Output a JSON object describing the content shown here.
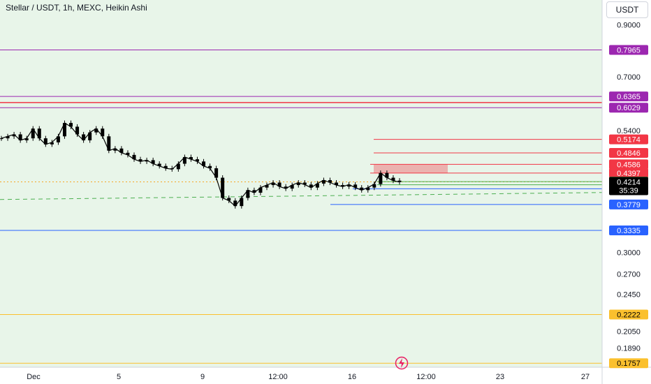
{
  "header": {
    "title": "Stellar / USDT, 1h, MEXC, Heikin Ashi",
    "currency_label": "USDT"
  },
  "colors": {
    "plot_bg": "#e8f5e9",
    "purple": "#9c27b0",
    "red": "#f23645",
    "green": "#4caf50",
    "blue": "#2962ff",
    "yellow": "#fbc02d",
    "candle": "#000000"
  },
  "chart_data": {
    "type": "line",
    "style": "heikin-ashi candles",
    "symbol": "Stellar / USDT",
    "interval": "1h",
    "exchange": "MEXC",
    "title": "",
    "xlabel": "",
    "ylabel": "",
    "y_scale": "log",
    "ylim": [
      0.17,
      1.0
    ],
    "grid": false,
    "x_ticks": [
      "Dec",
      "5",
      "9",
      "12:00",
      "16",
      "12:00",
      "23",
      "27"
    ],
    "y_ticks": [
      "0.9000",
      "0.7000",
      "0.5400",
      "0.3000",
      "0.2700",
      "0.2450",
      "0.2050",
      "0.1890"
    ],
    "price_levels": [
      {
        "label": "0.7965",
        "value": 0.7965,
        "color": "purple",
        "style": "full"
      },
      {
        "label": "0.6365",
        "value": 0.6365,
        "color": "purple",
        "style": "full"
      },
      {
        "label": "0.6029",
        "value": 0.6029,
        "color": "purple",
        "style": "full"
      },
      {
        "label": "0.5174",
        "value": 0.5174,
        "color": "red",
        "style": "right"
      },
      {
        "label": "0.4846",
        "value": 0.4846,
        "color": "red",
        "style": "right"
      },
      {
        "label": "0.4586",
        "value": 0.4586,
        "color": "red",
        "style": "right"
      },
      {
        "label": "0.4397",
        "value": 0.4397,
        "color": "red",
        "style": "right"
      },
      {
        "label": "0.4219",
        "value": 0.4219,
        "color": "green",
        "style": "right"
      },
      {
        "label": "0.4156",
        "value": 0.4156,
        "color": "green",
        "style": "right"
      },
      {
        "label": "0.4077",
        "value": 0.4077,
        "color": "blue",
        "style": "right"
      },
      {
        "label": "0.3779",
        "value": 0.3779,
        "color": "blue",
        "style": "right"
      },
      {
        "label": "0.3335",
        "value": 0.3335,
        "color": "blue",
        "style": "full"
      },
      {
        "label": "0.2222",
        "value": 0.2222,
        "color": "yellow",
        "style": "full"
      },
      {
        "label": "0.1757",
        "value": 0.1757,
        "color": "yellow",
        "style": "full"
      }
    ],
    "current_price": {
      "value": 0.4214,
      "label": "0.4214",
      "countdown": "35:39"
    },
    "resistance_line": {
      "value": 0.618,
      "color": "red"
    },
    "dashed_level": 0.395,
    "highlight_zone": [
      0.4397,
      0.4586
    ],
    "series": [
      {
        "values": [
          0.52,
          0.525,
          0.53,
          0.515,
          0.52,
          0.545,
          0.52,
          0.505,
          0.51,
          0.525,
          0.56,
          0.55,
          0.53,
          0.515,
          0.535,
          0.545,
          0.525,
          0.49,
          0.495,
          0.485,
          0.48,
          0.47,
          0.465,
          0.468,
          0.46,
          0.455,
          0.45,
          0.448,
          0.46,
          0.475,
          0.47,
          0.465,
          0.455,
          0.45,
          0.43,
          0.39,
          0.385,
          0.375,
          0.39,
          0.405,
          0.4,
          0.41,
          0.415,
          0.42,
          0.412,
          0.408,
          0.415,
          0.42,
          0.416,
          0.41,
          0.418,
          0.425,
          0.42,
          0.415,
          0.412,
          0.416,
          0.41,
          0.405,
          0.41,
          0.417,
          0.44,
          0.43,
          0.424,
          0.421
        ]
      }
    ]
  }
}
